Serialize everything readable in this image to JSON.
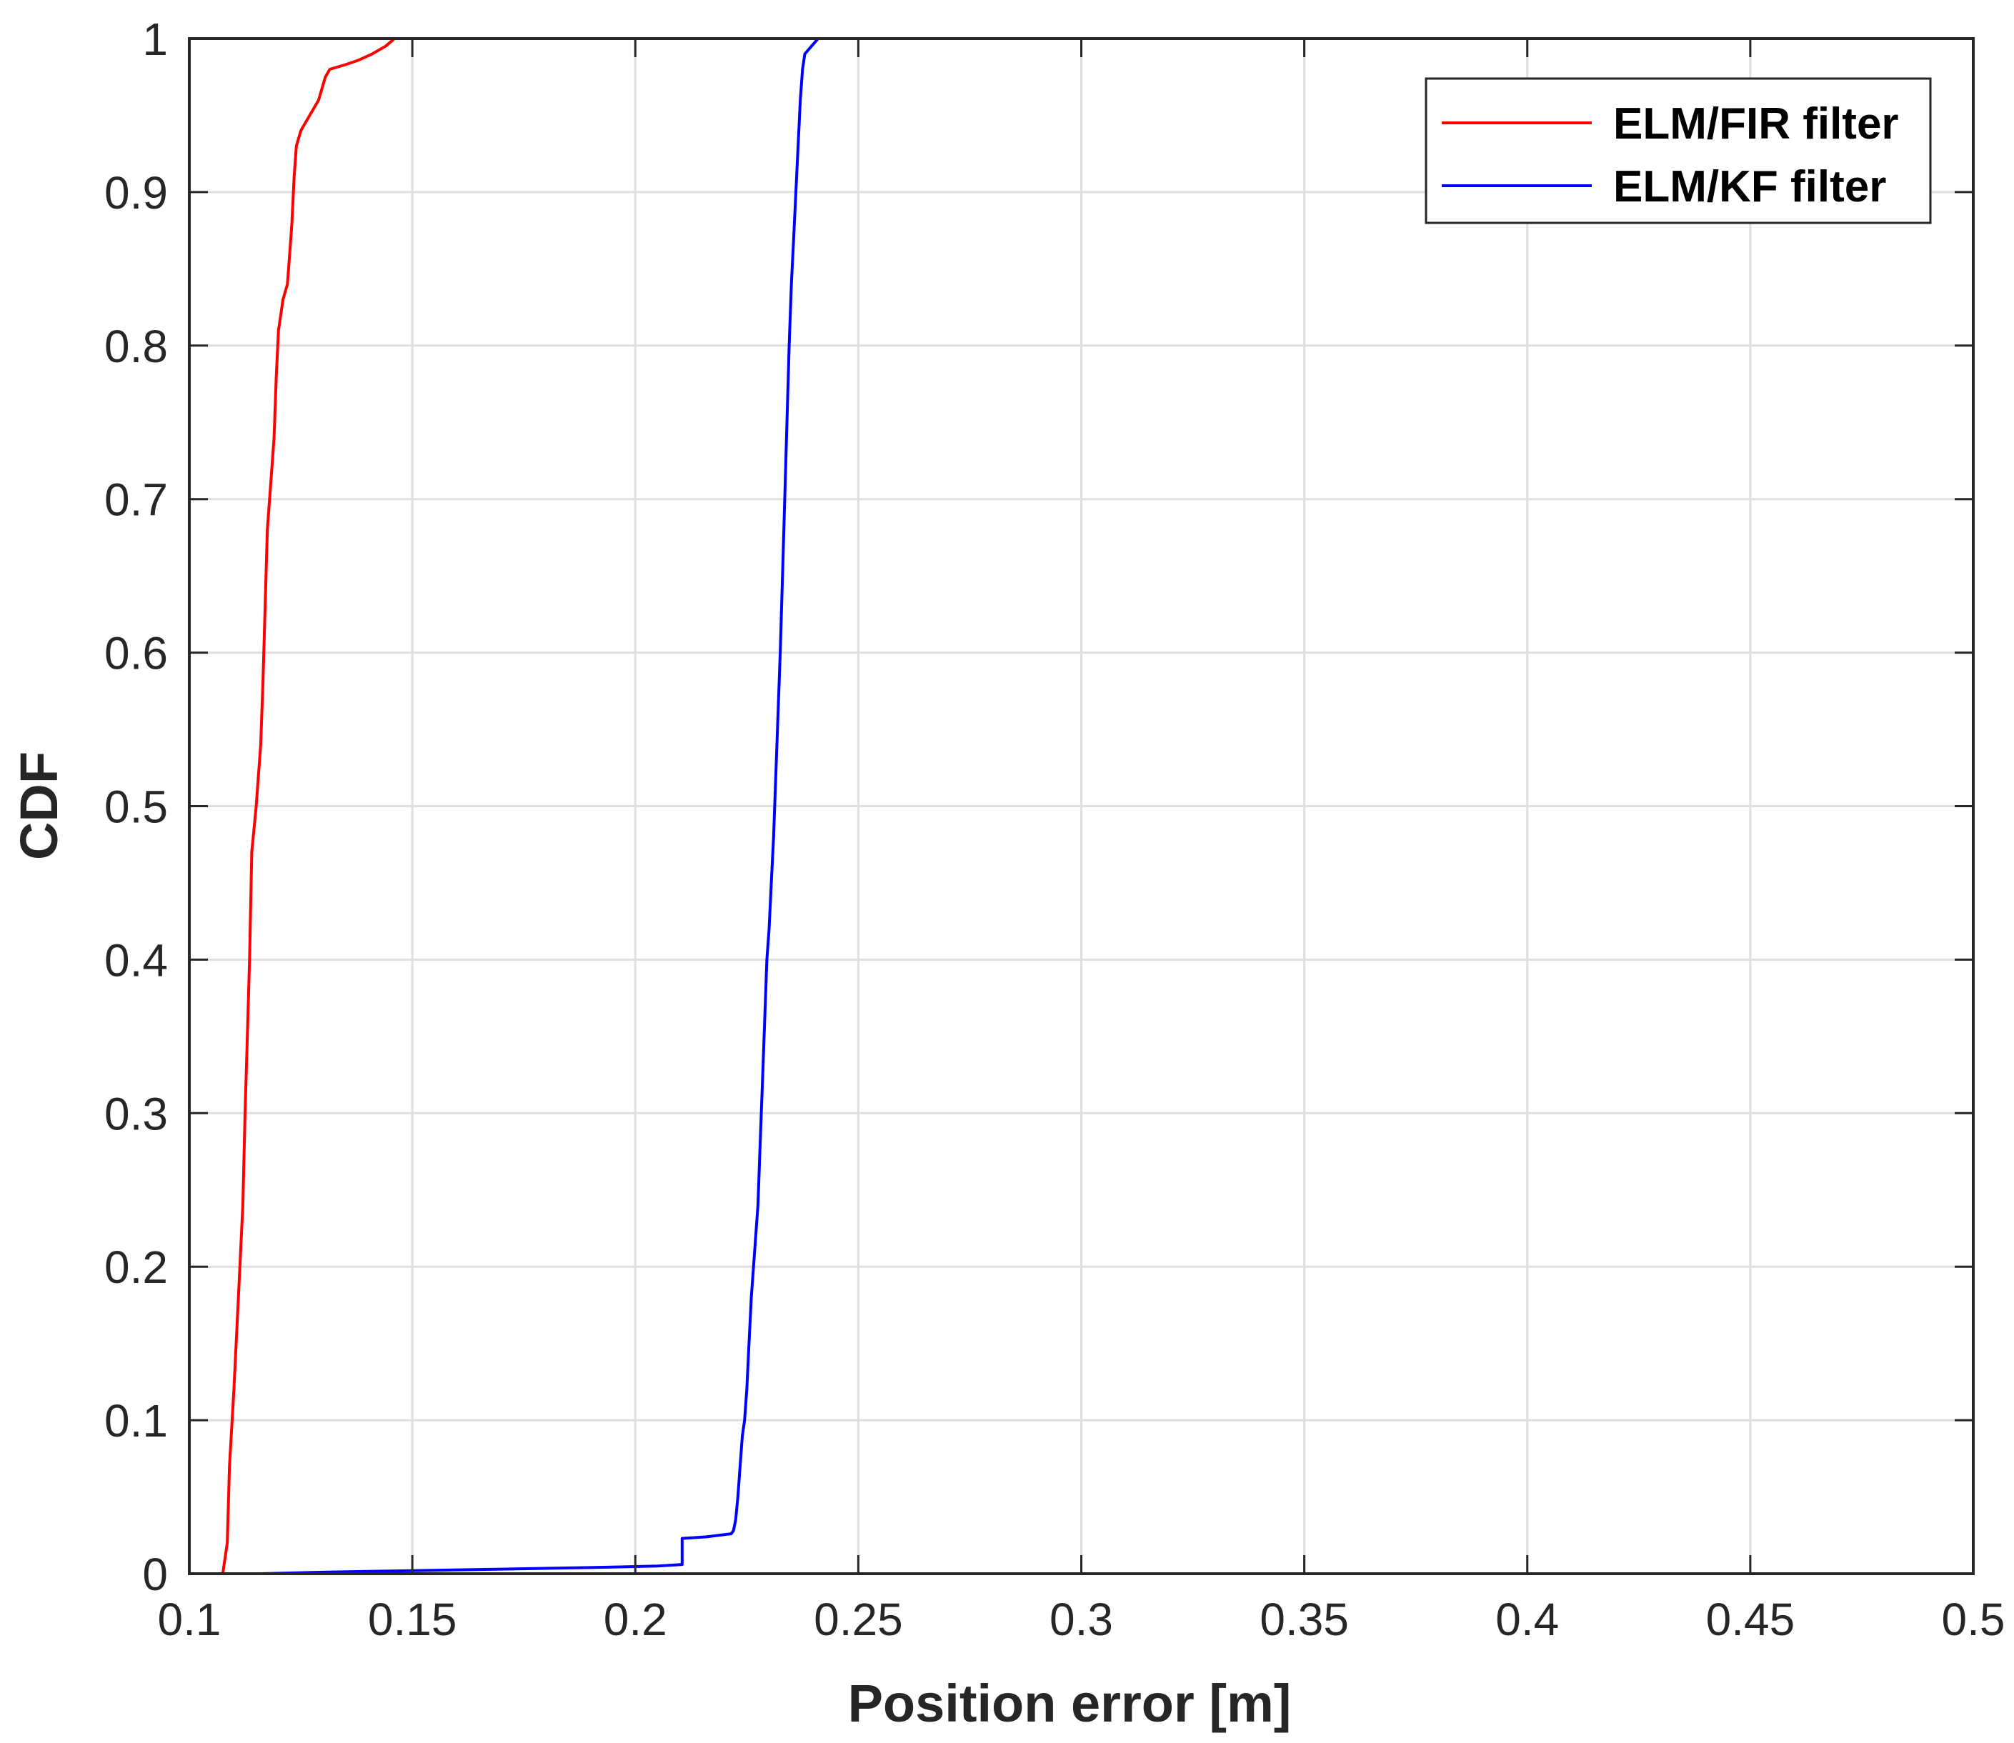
{
  "chart_data": {
    "type": "line",
    "title": "",
    "xlabel": "Position error [m]",
    "ylabel": "CDF",
    "xlim": [
      0.1,
      0.5
    ],
    "ylim": [
      0,
      1
    ],
    "xticks": [
      0.1,
      0.15,
      0.2,
      0.25,
      0.3,
      0.35,
      0.4,
      0.45,
      0.5
    ],
    "xtick_labels": [
      "0.1",
      "0.15",
      "0.2",
      "0.25",
      "0.3",
      "0.35",
      "0.4",
      "0.45",
      "0.5"
    ],
    "yticks": [
      0,
      0.1,
      0.2,
      0.3,
      0.4,
      0.5,
      0.6,
      0.7,
      0.8,
      0.9,
      1
    ],
    "ytick_labels": [
      "0",
      "0.1",
      "0.2",
      "0.3",
      "0.4",
      "0.5",
      "0.6",
      "0.7",
      "0.8",
      "0.9",
      "1"
    ],
    "grid": true,
    "legend_position": "top-right",
    "series": [
      {
        "name": "ELM/FIR filter",
        "color": "#ff0000",
        "points": [
          [
            0.1075,
            0.0
          ],
          [
            0.1085,
            0.02
          ],
          [
            0.109,
            0.07
          ],
          [
            0.11,
            0.12
          ],
          [
            0.111,
            0.18
          ],
          [
            0.112,
            0.24
          ],
          [
            0.1125,
            0.3
          ],
          [
            0.113,
            0.35
          ],
          [
            0.1135,
            0.4
          ],
          [
            0.114,
            0.47
          ],
          [
            0.115,
            0.5
          ],
          [
            0.116,
            0.54
          ],
          [
            0.1165,
            0.58
          ],
          [
            0.117,
            0.63
          ],
          [
            0.1175,
            0.68
          ],
          [
            0.1185,
            0.72
          ],
          [
            0.119,
            0.74
          ],
          [
            0.1195,
            0.78
          ],
          [
            0.12,
            0.81
          ],
          [
            0.1205,
            0.82
          ],
          [
            0.121,
            0.83
          ],
          [
            0.122,
            0.84
          ],
          [
            0.1225,
            0.86
          ],
          [
            0.123,
            0.88
          ],
          [
            0.1235,
            0.91
          ],
          [
            0.124,
            0.93
          ],
          [
            0.125,
            0.94
          ],
          [
            0.127,
            0.95
          ],
          [
            0.129,
            0.96
          ],
          [
            0.1305,
            0.975
          ],
          [
            0.1315,
            0.98
          ],
          [
            0.135,
            0.983
          ],
          [
            0.138,
            0.986
          ],
          [
            0.141,
            0.99
          ],
          [
            0.144,
            0.995
          ],
          [
            0.146,
            1.0
          ],
          [
            0.17,
            1.0
          ],
          [
            0.2,
            1.0
          ],
          [
            0.24,
            1.0
          ]
        ]
      },
      {
        "name": "ELM/KF filter",
        "color": "#0000ff",
        "points": [
          [
            0.116,
            0.0
          ],
          [
            0.13,
            0.001
          ],
          [
            0.15,
            0.002
          ],
          [
            0.17,
            0.003
          ],
          [
            0.19,
            0.004
          ],
          [
            0.205,
            0.005
          ],
          [
            0.2105,
            0.006
          ],
          [
            0.2105,
            0.023
          ],
          [
            0.216,
            0.024
          ],
          [
            0.2215,
            0.026
          ],
          [
            0.222,
            0.028
          ],
          [
            0.2225,
            0.035
          ],
          [
            0.223,
            0.05
          ],
          [
            0.2235,
            0.07
          ],
          [
            0.224,
            0.09
          ],
          [
            0.2245,
            0.1
          ],
          [
            0.225,
            0.12
          ],
          [
            0.2255,
            0.15
          ],
          [
            0.226,
            0.18
          ],
          [
            0.2265,
            0.2
          ],
          [
            0.227,
            0.22
          ],
          [
            0.2275,
            0.24
          ],
          [
            0.228,
            0.28
          ],
          [
            0.2285,
            0.32
          ],
          [
            0.229,
            0.36
          ],
          [
            0.2295,
            0.4
          ],
          [
            0.23,
            0.42
          ],
          [
            0.2305,
            0.45
          ],
          [
            0.231,
            0.48
          ],
          [
            0.2315,
            0.52
          ],
          [
            0.232,
            0.56
          ],
          [
            0.2325,
            0.6
          ],
          [
            0.233,
            0.65
          ],
          [
            0.2335,
            0.7
          ],
          [
            0.234,
            0.75
          ],
          [
            0.2345,
            0.8
          ],
          [
            0.235,
            0.84
          ],
          [
            0.2355,
            0.87
          ],
          [
            0.236,
            0.9
          ],
          [
            0.2365,
            0.93
          ],
          [
            0.237,
            0.96
          ],
          [
            0.2375,
            0.98
          ],
          [
            0.238,
            0.99
          ],
          [
            0.2395,
            0.995
          ],
          [
            0.241,
            1.0
          ],
          [
            0.3,
            1.0
          ],
          [
            0.4,
            1.0
          ],
          [
            0.4665,
            1.0
          ]
        ]
      }
    ]
  }
}
